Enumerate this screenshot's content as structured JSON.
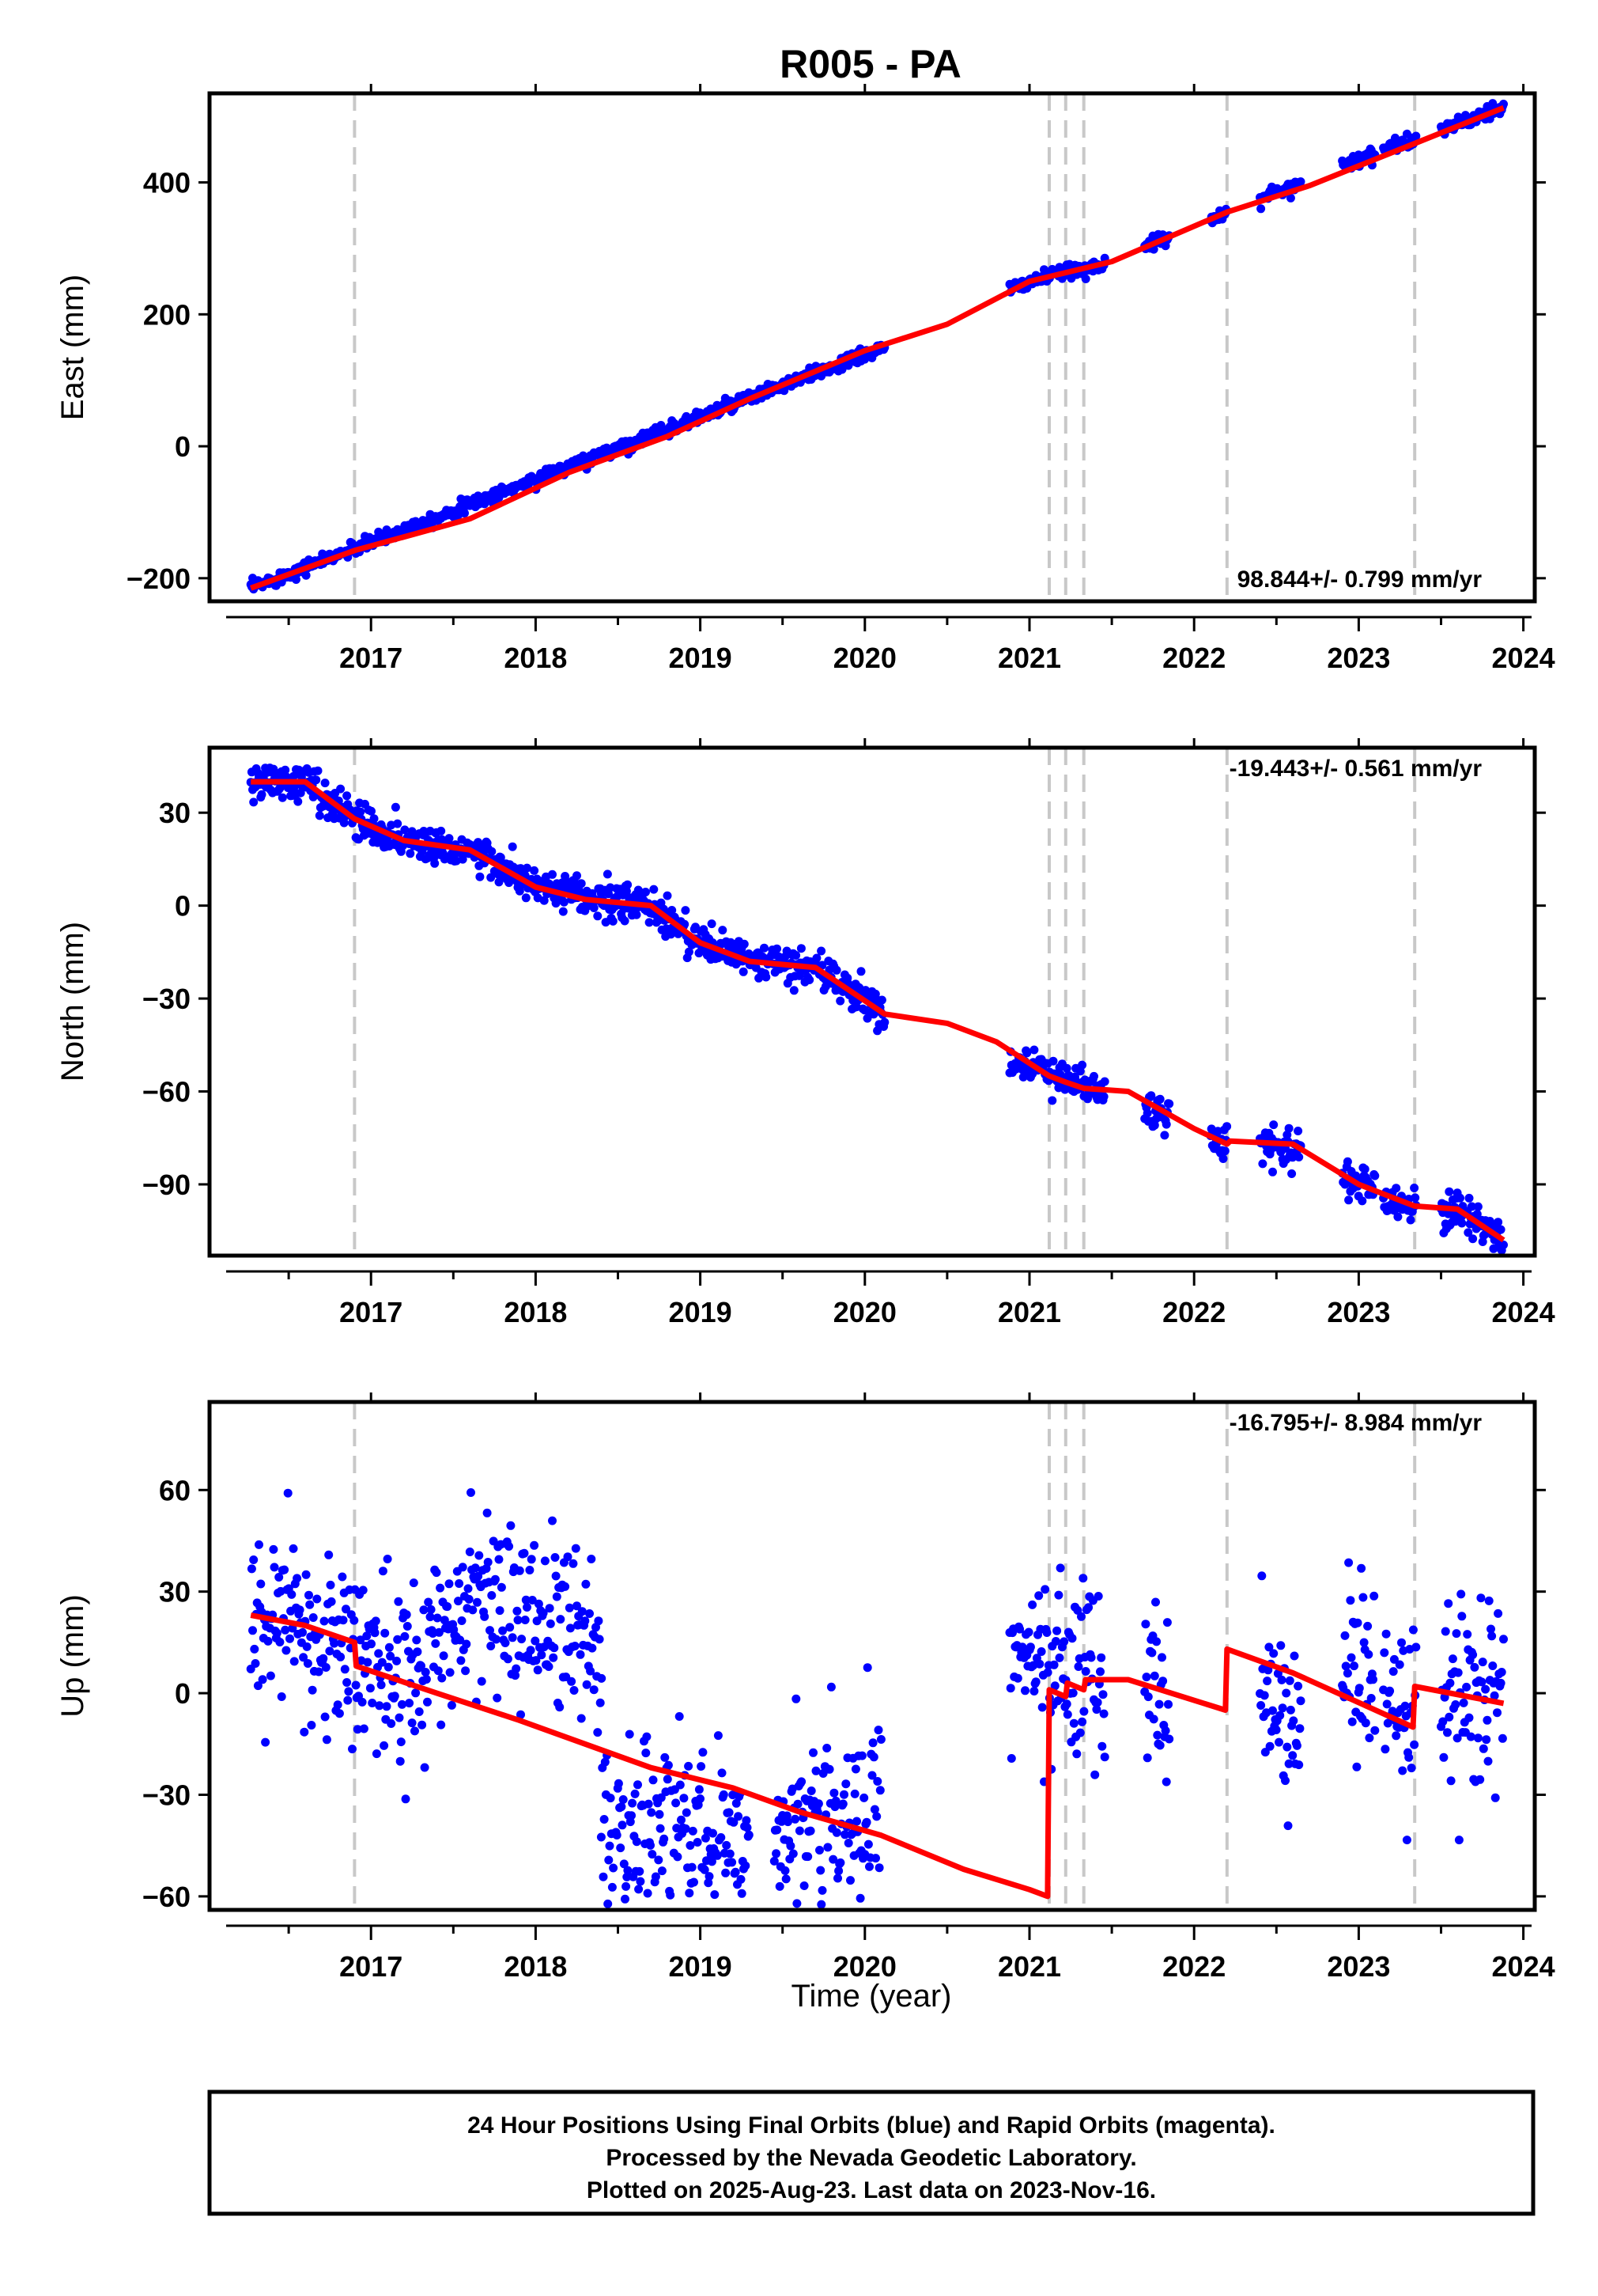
{
  "figure": {
    "title": "R005 - PA",
    "colors": {
      "final_points": "#0000ff",
      "model_line": "#ff0000",
      "event_lines": "#c8c8c8",
      "frame": "#000000"
    },
    "notes": [
      "24 Hour Positions Using Final Orbits (blue) and Rapid Orbits (magenta).",
      "Processed by the Nevada Geodetic Laboratory.",
      "Plotted on 2025-Aug-23. Last data on 2023-Nov-16."
    ]
  },
  "chart_data": [
    {
      "type": "scatter",
      "ylabel": "East (mm)",
      "xlabel": "",
      "xlim": [
        2016.12,
        2024.05
      ],
      "ylim": [
        -235,
        535
      ],
      "x_ticks": [
        2017,
        2018,
        2019,
        2020,
        2021,
        2022,
        2023,
        2024
      ],
      "y_ticks": [
        -200,
        0,
        200,
        400
      ],
      "rate_text": "98.844+/- 0.799 mm/yr",
      "event_lines": [
        2016.9,
        2021.12,
        2021.22,
        2021.33,
        2022.2,
        2023.34
      ],
      "series": [
        {
          "kind": "points",
          "segments": [
            [
              2016.27,
              2020.12
            ],
            [
              2020.88,
              2021.46
            ],
            [
              2021.7,
              2021.85
            ],
            [
              2022.1,
              2022.2
            ],
            [
              2022.4,
              2022.65
            ],
            [
              2022.9,
              2023.1
            ],
            [
              2023.15,
              2023.35
            ],
            [
              2023.5,
              2023.88
            ]
          ],
          "trend": [
            [
              2016.27,
              -215
            ],
            [
              2019.0,
              45
            ],
            [
              2020.12,
              150
            ],
            [
              2021.0,
              250
            ],
            [
              2021.5,
              280
            ],
            [
              2022.2,
              355
            ],
            [
              2023.0,
              435
            ],
            [
              2023.88,
              513
            ]
          ],
          "noise": 5
        },
        {
          "kind": "line",
          "points": [
            [
              2016.27,
              -215
            ],
            [
              2016.9,
              -158
            ],
            [
              2017.6,
              -110
            ],
            [
              2018.2,
              -40
            ],
            [
              2018.8,
              15
            ],
            [
              2019.3,
              72
            ],
            [
              2020.0,
              145
            ],
            [
              2020.5,
              185
            ],
            [
              2021.0,
              250
            ],
            [
              2021.5,
              280
            ],
            [
              2022.2,
              355
            ],
            [
              2022.7,
              395
            ],
            [
              2023.2,
              445
            ],
            [
              2023.88,
              513
            ]
          ]
        }
      ]
    },
    {
      "type": "scatter",
      "ylabel": "North (mm)",
      "xlabel": "",
      "xlim": [
        2016.12,
        2024.05
      ],
      "ylim": [
        -113,
        51
      ],
      "x_ticks": [
        2017,
        2018,
        2019,
        2020,
        2021,
        2022,
        2023,
        2024
      ],
      "y_ticks": [
        -90,
        -60,
        -30,
        0,
        30
      ],
      "rate_text": "-19.443+/- 0.561 mm/yr",
      "event_lines": [
        2016.9,
        2021.12,
        2021.22,
        2021.33,
        2022.2,
        2023.34
      ],
      "series": [
        {
          "kind": "points",
          "segments": [
            [
              2016.27,
              2020.12
            ],
            [
              2020.88,
              2021.46
            ],
            [
              2021.7,
              2021.85
            ],
            [
              2022.1,
              2022.2
            ],
            [
              2022.4,
              2022.65
            ],
            [
              2022.9,
              2023.1
            ],
            [
              2023.15,
              2023.35
            ],
            [
              2023.5,
              2023.88
            ]
          ],
          "trend": [
            [
              2016.27,
              40
            ],
            [
              2016.6,
              40
            ],
            [
              2016.9,
              28
            ],
            [
              2017.2,
              21
            ],
            [
              2017.6,
              18
            ],
            [
              2018.0,
              6
            ],
            [
              2018.3,
              2
            ],
            [
              2018.7,
              0
            ],
            [
              2019.0,
              -12
            ],
            [
              2019.3,
              -18
            ],
            [
              2019.7,
              -20
            ],
            [
              2020.12,
              -35
            ],
            [
              2021.0,
              -52
            ],
            [
              2021.46,
              -60
            ],
            [
              2021.8,
              -68
            ],
            [
              2022.2,
              -77
            ],
            [
              2022.65,
              -78
            ],
            [
              2023.0,
              -90
            ],
            [
              2023.3,
              -97
            ],
            [
              2023.6,
              -98
            ],
            [
              2023.88,
              -108
            ]
          ],
          "noise": 3
        },
        {
          "kind": "line",
          "points": [
            [
              2016.27,
              40
            ],
            [
              2016.6,
              40
            ],
            [
              2016.9,
              28
            ],
            [
              2017.2,
              21
            ],
            [
              2017.6,
              18
            ],
            [
              2018.0,
              6
            ],
            [
              2018.3,
              2
            ],
            [
              2018.7,
              0
            ],
            [
              2019.0,
              -12
            ],
            [
              2019.3,
              -18
            ],
            [
              2019.7,
              -20
            ],
            [
              2020.12,
              -35
            ],
            [
              2020.5,
              -38
            ],
            [
              2020.8,
              -44
            ],
            [
              2021.12,
              -55
            ],
            [
              2021.22,
              -57
            ],
            [
              2021.33,
              -59
            ],
            [
              2021.6,
              -60
            ],
            [
              2022.0,
              -72
            ],
            [
              2022.2,
              -77
            ],
            [
              2022.22,
              -76
            ],
            [
              2022.6,
              -77
            ],
            [
              2023.0,
              -90
            ],
            [
              2023.34,
              -97
            ],
            [
              2023.6,
              -98
            ],
            [
              2023.88,
              -108
            ]
          ]
        }
      ]
    },
    {
      "type": "scatter",
      "ylabel": "Up (mm)",
      "xlabel": "Time (year)",
      "xlim": [
        2016.12,
        2024.05
      ],
      "ylim": [
        -64,
        86
      ],
      "x_ticks": [
        2017,
        2018,
        2019,
        2020,
        2021,
        2022,
        2023,
        2024
      ],
      "y_ticks": [
        -60,
        -30,
        0,
        30,
        60
      ],
      "rate_text": "-16.795+/- 8.984 mm/yr",
      "event_lines": [
        2016.9,
        2021.12,
        2021.22,
        2021.33,
        2022.2,
        2023.34
      ],
      "series": [
        {
          "kind": "points",
          "segments": [
            [
              2016.27,
              2018.4
            ],
            [
              2018.4,
              2019.3
            ],
            [
              2019.45,
              2020.1
            ],
            [
              2020.88,
              2021.46
            ],
            [
              2021.7,
              2021.85
            ],
            [
              2022.4,
              2022.65
            ],
            [
              2022.9,
              2023.1
            ],
            [
              2023.15,
              2023.35
            ],
            [
              2023.5,
              2023.88
            ]
          ],
          "trend": [
            [
              2016.27,
              22
            ],
            [
              2016.9,
              12
            ],
            [
              2017.3,
              5
            ],
            [
              2017.6,
              30
            ],
            [
              2018.0,
              22
            ],
            [
              2018.38,
              15
            ],
            [
              2018.42,
              -40
            ],
            [
              2019.0,
              -42
            ],
            [
              2019.3,
              -40
            ],
            [
              2019.5,
              -35
            ],
            [
              2020.1,
              -36
            ],
            [
              2020.9,
              10
            ],
            [
              2021.46,
              5
            ],
            [
              2021.8,
              0
            ],
            [
              2022.5,
              -5
            ],
            [
              2022.9,
              5
            ],
            [
              2023.3,
              -5
            ],
            [
              2023.88,
              0
            ]
          ],
          "noise": 13
        },
        {
          "kind": "line",
          "points": [
            [
              2016.27,
              23
            ],
            [
              2016.6,
              20
            ],
            [
              2016.9,
              15
            ],
            [
              2016.91,
              8
            ],
            [
              2017.4,
              0
            ],
            [
              2017.9,
              -8
            ],
            [
              2018.3,
              -15
            ],
            [
              2018.7,
              -22
            ],
            [
              2019.2,
              -28
            ],
            [
              2019.6,
              -35
            ],
            [
              2020.1,
              -42
            ],
            [
              2020.6,
              -52
            ],
            [
              2021.0,
              -58
            ],
            [
              2021.11,
              -60
            ],
            [
              2021.12,
              1
            ],
            [
              2021.22,
              -1
            ],
            [
              2021.23,
              3
            ],
            [
              2021.33,
              1
            ],
            [
              2021.34,
              4
            ],
            [
              2021.6,
              4
            ],
            [
              2022.19,
              -5
            ],
            [
              2022.2,
              13
            ],
            [
              2022.6,
              6
            ],
            [
              2023.33,
              -10
            ],
            [
              2023.34,
              2
            ],
            [
              2023.88,
              -3
            ]
          ]
        }
      ]
    }
  ]
}
